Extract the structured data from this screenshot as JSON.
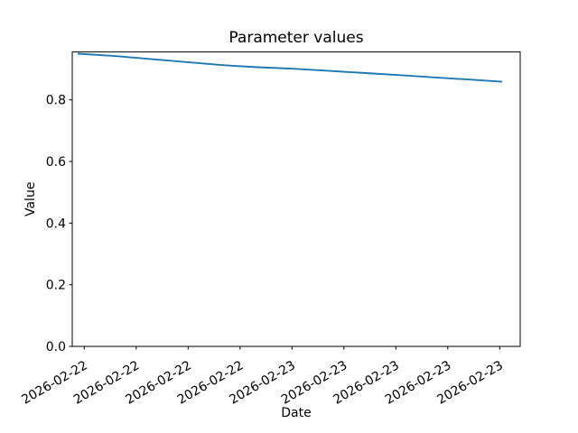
{
  "figure": {
    "title": "Parameter values",
    "xlabel": "Date",
    "ylabel": "Value",
    "background": "#ffffff",
    "spine_color": "#000000",
    "line_color": "#1f77b4"
  },
  "chart_data": {
    "type": "line",
    "title": "Parameter values",
    "xlabel": "Date",
    "ylabel": "Value",
    "grid": false,
    "legend": false,
    "x_tick_labels": [
      "2026-02-22",
      "2026-02-22",
      "2026-02-22",
      "2026-02-22",
      "2026-02-23",
      "2026-02-23",
      "2026-02-23",
      "2026-02-23",
      "2026-02-23"
    ],
    "x_tick_rotation_deg": 30,
    "y_ticks": [
      0.0,
      0.2,
      0.4,
      0.6,
      0.8
    ],
    "y_tick_labels": [
      "0.0",
      "0.2",
      "0.4",
      "0.6",
      "0.8"
    ],
    "ylim": [
      0.0,
      0.9555
    ],
    "xlim_in_tick_units": [
      -0.231,
      8.395
    ],
    "series": [
      {
        "name": "parameter-value",
        "color": "#1f77b4",
        "x_in_tick_units": [
          -0.127,
          0.551,
          1.247,
          1.943,
          2.638,
          3.334,
          4.03,
          4.725,
          5.421,
          6.117,
          6.812,
          7.421,
          8.047
        ],
        "values": [
          0.95,
          0.943,
          0.933,
          0.923,
          0.913,
          0.906,
          0.901,
          0.894,
          0.887,
          0.88,
          0.872,
          0.866,
          0.859
        ]
      }
    ]
  }
}
